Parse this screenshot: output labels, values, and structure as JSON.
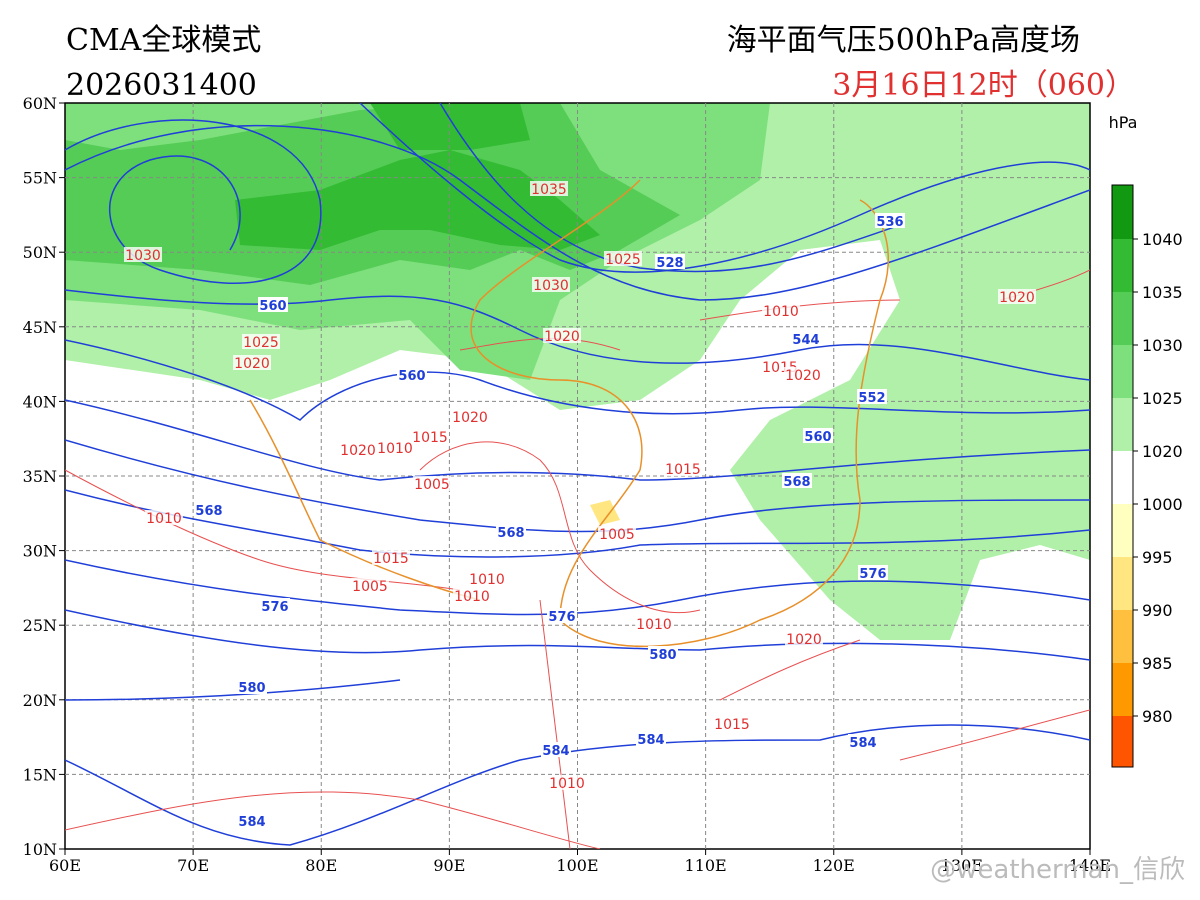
{
  "header": {
    "model": "CMA全球模式",
    "init": "2026031400",
    "title": "海平面气压500hPa高度场",
    "valid": "3月16日12时（060）"
  },
  "map": {
    "lat_labels": [
      "60N",
      "55N",
      "50N",
      "45N",
      "40N",
      "35N",
      "30N",
      "25N",
      "20N",
      "15N",
      "10N"
    ],
    "lon_labels": [
      "60E",
      "70E",
      "80E",
      "90E",
      "100E",
      "110E",
      "120E",
      "130E",
      "140E"
    ],
    "pressure_labels": [
      "1035",
      "1030",
      "1025",
      "1030",
      "1010",
      "1020",
      "1025",
      "1020",
      "1020",
      "1015",
      "1020",
      "1020",
      "1015",
      "1020",
      "1010",
      "1005",
      "1015",
      "1010",
      "1005",
      "1015",
      "1005",
      "1010",
      "1010",
      "1010",
      "1020",
      "1015",
      "1010"
    ],
    "height_labels": [
      "536",
      "528",
      "560",
      "544",
      "560",
      "552",
      "560",
      "568",
      "568",
      "568",
      "576",
      "576",
      "576",
      "580",
      "580",
      "584",
      "584",
      "584",
      "584"
    ]
  },
  "colorbar": {
    "unit": "hPa",
    "levels": [
      "1040",
      "1035",
      "1030",
      "1025",
      "1020",
      "1000",
      "995",
      "990",
      "985",
      "980"
    ]
  },
  "watermark": "@weatherman_信欣"
}
